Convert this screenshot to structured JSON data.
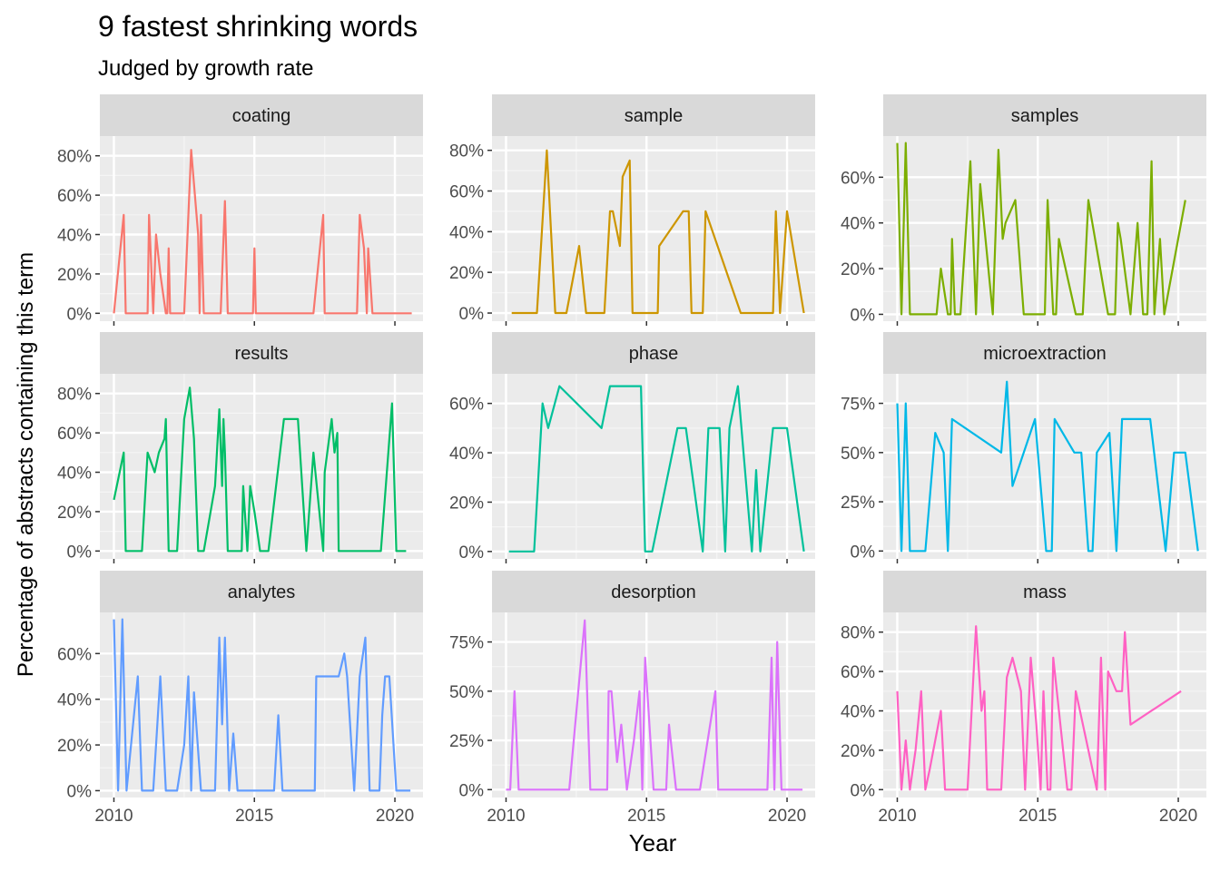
{
  "chart_data": {
    "type": "line",
    "title": "9 fastest shrinking words",
    "subtitle": "Judged by growth rate",
    "xlabel": "Year",
    "ylabel": "Percentage of abstracts containing this term",
    "xlim": [
      2009.5,
      2021.0
    ],
    "x_ticks": [
      2010,
      2015,
      2020
    ],
    "grid": true,
    "legend": "none",
    "panels": [
      {
        "name": "coating",
        "color": "#F8766D",
        "ylim": [
          -0.04,
          0.9
        ],
        "y_ticks": [
          0,
          0.2,
          0.4,
          0.6,
          0.8
        ],
        "y_tick_labels": [
          "0%",
          "20%",
          "40%",
          "60%",
          "80%"
        ],
        "x": [
          2010.0,
          2010.35,
          2010.42,
          2011.2,
          2011.25,
          2011.4,
          2011.5,
          2011.65,
          2011.85,
          2011.9,
          2011.95,
          2012.0,
          2012.5,
          2012.75,
          2013.0,
          2013.05,
          2013.1,
          2013.2,
          2013.8,
          2013.95,
          2014.05,
          2014.95,
          2015.0,
          2015.05,
          2017.1,
          2017.45,
          2017.5,
          2018.65,
          2018.75,
          2018.9,
          2019.0,
          2019.05,
          2019.2,
          2019.3,
          2020.6
        ],
        "y": [
          0,
          0.5,
          0,
          0,
          0.5,
          0,
          0.4,
          0.2,
          0,
          0,
          0.33,
          0,
          0,
          0.83,
          0.4,
          0,
          0.5,
          0,
          0,
          0.57,
          0,
          0,
          0.33,
          0,
          0,
          0.5,
          0,
          0,
          0.5,
          0.33,
          0,
          0.33,
          0,
          0,
          0
        ]
      },
      {
        "name": "sample",
        "color": "#CD9600",
        "ylim": [
          -0.04,
          0.87
        ],
        "y_ticks": [
          0,
          0.2,
          0.4,
          0.6,
          0.8
        ],
        "y_tick_labels": [
          "0%",
          "20%",
          "40%",
          "60%",
          "80%"
        ],
        "x": [
          2010.2,
          2011.1,
          2011.45,
          2011.75,
          2012.15,
          2012.6,
          2012.85,
          2013.5,
          2013.7,
          2013.8,
          2014.05,
          2014.15,
          2014.4,
          2014.5,
          2015.4,
          2015.45,
          2016.3,
          2016.5,
          2016.6,
          2017.0,
          2017.1,
          2018.35,
          2019.5,
          2019.6,
          2019.75,
          2020.0,
          2020.6
        ],
        "y": [
          0,
          0,
          0.8,
          0,
          0,
          0.33,
          0,
          0,
          0.5,
          0.5,
          0.33,
          0.67,
          0.75,
          0,
          0,
          0.33,
          0.5,
          0.5,
          0,
          0,
          0.5,
          0,
          0,
          0.5,
          0,
          0.5,
          0
        ]
      },
      {
        "name": "samples",
        "color": "#7CAE00",
        "ylim": [
          -0.03,
          0.78
        ],
        "y_ticks": [
          0,
          0.2,
          0.4,
          0.6
        ],
        "y_tick_labels": [
          "0%",
          "20%",
          "40%",
          "60%"
        ],
        "x": [
          2010.0,
          2010.15,
          2010.3,
          2010.45,
          2011.4,
          2011.55,
          2011.8,
          2011.9,
          2011.95,
          2012.05,
          2012.25,
          2012.6,
          2012.8,
          2012.95,
          2013.4,
          2013.6,
          2013.75,
          2013.85,
          2014.2,
          2014.5,
          2014.6,
          2015.25,
          2015.35,
          2015.55,
          2015.65,
          2015.75,
          2016.35,
          2016.6,
          2016.8,
          2017.5,
          2017.75,
          2017.85,
          2017.95,
          2018.3,
          2018.55,
          2018.75,
          2018.9,
          2019.05,
          2019.15,
          2019.35,
          2019.5,
          2020.25
        ],
        "y": [
          0.75,
          0,
          0.75,
          0,
          0,
          0.2,
          0,
          0,
          0.33,
          0,
          0,
          0.67,
          0,
          0.57,
          0,
          0.72,
          0.33,
          0.4,
          0.5,
          0,
          0,
          0,
          0.5,
          0,
          0,
          0.33,
          0,
          0,
          0.5,
          0,
          0,
          0.4,
          0.33,
          0,
          0.4,
          0,
          0,
          0.67,
          0,
          0.33,
          0,
          0.5
        ]
      },
      {
        "name": "results",
        "color": "#00BE67",
        "ylim": [
          -0.04,
          0.9
        ],
        "y_ticks": [
          0,
          0.2,
          0.4,
          0.6,
          0.8
        ],
        "y_tick_labels": [
          "0%",
          "20%",
          "40%",
          "60%",
          "80%"
        ],
        "x": [
          2010.0,
          2010.35,
          2010.42,
          2011.0,
          2011.2,
          2011.45,
          2011.6,
          2011.8,
          2011.85,
          2011.95,
          2012.0,
          2012.25,
          2012.5,
          2012.7,
          2012.85,
          2013.0,
          2013.2,
          2013.6,
          2013.75,
          2013.85,
          2013.9,
          2013.95,
          2014.05,
          2014.55,
          2014.6,
          2014.75,
          2014.85,
          2015.0,
          2015.2,
          2015.5,
          2016.05,
          2016.1,
          2016.55,
          2016.85,
          2017.1,
          2017.45,
          2017.5,
          2017.75,
          2017.85,
          2017.95,
          2018.0,
          2019.5,
          2019.9,
          2020.05,
          2020.4
        ],
        "y": [
          0.26,
          0.5,
          0,
          0,
          0.5,
          0.4,
          0.5,
          0.57,
          0.67,
          0,
          0,
          0,
          0.67,
          0.83,
          0.57,
          0,
          0,
          0.33,
          0.72,
          0.33,
          0.67,
          0.5,
          0,
          0,
          0.33,
          0,
          0.33,
          0.2,
          0,
          0,
          0.67,
          0.67,
          0.67,
          0,
          0.5,
          0,
          0.4,
          0.67,
          0.5,
          0.6,
          0,
          0,
          0.75,
          0,
          0
        ]
      },
      {
        "name": "phase",
        "color": "#00C19A",
        "ylim": [
          -0.03,
          0.72
        ],
        "y_ticks": [
          0,
          0.2,
          0.4,
          0.6
        ],
        "y_tick_labels": [
          "0%",
          "20%",
          "40%",
          "60%"
        ],
        "x": [
          2010.1,
          2011.0,
          2011.3,
          2011.5,
          2011.9,
          2013.4,
          2013.7,
          2014.5,
          2014.8,
          2014.95,
          2015.2,
          2016.1,
          2016.4,
          2017.0,
          2017.2,
          2017.6,
          2017.8,
          2017.95,
          2018.25,
          2018.75,
          2018.9,
          2019.05,
          2019.5,
          2020.0,
          2020.6
        ],
        "y": [
          0,
          0,
          0.6,
          0.5,
          0.67,
          0.5,
          0.67,
          0.67,
          0.67,
          0,
          0,
          0.5,
          0.5,
          0,
          0.5,
          0.5,
          0,
          0.5,
          0.67,
          0,
          0.33,
          0,
          0.5,
          0.5,
          0
        ]
      },
      {
        "name": "microextraction",
        "color": "#00B8E7",
        "ylim": [
          -0.04,
          0.9
        ],
        "y_ticks": [
          0,
          0.25,
          0.5,
          0.75
        ],
        "y_tick_labels": [
          "0%",
          "25%",
          "50%",
          "75%"
        ],
        "x": [
          2010.0,
          2010.15,
          2010.3,
          2010.45,
          2011.0,
          2011.35,
          2011.65,
          2011.8,
          2011.95,
          2013.7,
          2013.9,
          2014.1,
          2014.9,
          2015.3,
          2015.5,
          2015.6,
          2016.3,
          2016.55,
          2016.8,
          2016.95,
          2017.1,
          2017.55,
          2017.8,
          2018.0,
          2018.7,
          2019.0,
          2019.55,
          2019.85,
          2020.25,
          2020.7
        ],
        "y": [
          0.75,
          0,
          0.75,
          0,
          0,
          0.6,
          0.5,
          0,
          0.67,
          0.5,
          0.86,
          0.33,
          0.67,
          0,
          0,
          0.67,
          0.5,
          0.5,
          0,
          0,
          0.5,
          0.6,
          0,
          0.67,
          0.67,
          0.67,
          0,
          0.5,
          0.5,
          0
        ]
      },
      {
        "name": "analytes",
        "color": "#619CFF",
        "ylim": [
          -0.03,
          0.78
        ],
        "y_ticks": [
          0,
          0.2,
          0.4,
          0.6
        ],
        "y_tick_labels": [
          "0%",
          "20%",
          "40%",
          "60%"
        ],
        "x": [
          2010.0,
          2010.15,
          2010.3,
          2010.45,
          2010.85,
          2011.0,
          2011.4,
          2011.65,
          2011.85,
          2012.25,
          2012.5,
          2012.65,
          2012.75,
          2012.85,
          2013.1,
          2013.6,
          2013.75,
          2013.85,
          2013.95,
          2014.1,
          2014.25,
          2014.4,
          2014.55,
          2015.7,
          2015.85,
          2016.0,
          2017.15,
          2017.2,
          2018.0,
          2018.2,
          2018.3,
          2018.55,
          2018.75,
          2018.95,
          2019.1,
          2019.45,
          2019.55,
          2019.65,
          2019.8,
          2020.05,
          2020.55
        ],
        "y": [
          0.75,
          0,
          0.75,
          0,
          0.5,
          0,
          0,
          0.5,
          0,
          0,
          0.2,
          0.5,
          0,
          0.43,
          0,
          0,
          0.67,
          0.29,
          0.67,
          0,
          0.25,
          0,
          0,
          0,
          0.33,
          0,
          0,
          0.5,
          0.5,
          0.6,
          0.5,
          0,
          0.5,
          0.67,
          0,
          0,
          0.33,
          0.5,
          0.5,
          0,
          0
        ]
      },
      {
        "name": "desorption",
        "color": "#DB72FB",
        "ylim": [
          -0.04,
          0.9
        ],
        "y_ticks": [
          0,
          0.25,
          0.5,
          0.75
        ],
        "y_tick_labels": [
          "0%",
          "25%",
          "50%",
          "75%"
        ],
        "x": [
          2010.0,
          2010.15,
          2010.3,
          2010.45,
          2012.25,
          2012.8,
          2013.0,
          2013.6,
          2013.65,
          2013.75,
          2013.95,
          2014.1,
          2014.3,
          2014.55,
          2014.75,
          2014.85,
          2014.95,
          2015.25,
          2015.7,
          2015.8,
          2016.05,
          2016.9,
          2017.45,
          2017.55,
          2019.3,
          2019.45,
          2019.55,
          2019.65,
          2019.8,
          2020.55
        ],
        "y": [
          0,
          0,
          0.5,
          0,
          0,
          0.86,
          0,
          0,
          0.5,
          0.5,
          0.14,
          0.33,
          0,
          0.25,
          0.5,
          0,
          0.67,
          0,
          0,
          0.33,
          0,
          0,
          0.5,
          0,
          0,
          0.67,
          0,
          0.75,
          0,
          0
        ]
      },
      {
        "name": "mass",
        "color": "#FF61C3",
        "ylim": [
          -0.04,
          0.9
        ],
        "y_ticks": [
          0,
          0.2,
          0.4,
          0.6,
          0.8
        ],
        "y_tick_labels": [
          "0%",
          "20%",
          "40%",
          "60%",
          "80%"
        ],
        "x": [
          2010.0,
          2010.15,
          2010.3,
          2010.45,
          2010.65,
          2010.85,
          2011.0,
          2011.15,
          2011.55,
          2011.7,
          2012.5,
          2012.8,
          2013.0,
          2013.1,
          2013.2,
          2013.7,
          2013.9,
          2014.1,
          2014.4,
          2014.55,
          2014.75,
          2014.95,
          2015.1,
          2015.2,
          2015.35,
          2015.45,
          2015.55,
          2016.05,
          2016.2,
          2016.35,
          2017.1,
          2017.25,
          2017.4,
          2017.5,
          2017.8,
          2018.0,
          2018.1,
          2018.3,
          2020.1
        ],
        "y": [
          0.5,
          0,
          0.25,
          0,
          0.2,
          0.5,
          0,
          0.1,
          0.4,
          0,
          0,
          0.83,
          0.4,
          0.5,
          0,
          0,
          0.57,
          0.67,
          0.5,
          0,
          0.67,
          0.33,
          0,
          0.5,
          0,
          0,
          0.67,
          0,
          0,
          0.5,
          0,
          0.67,
          0,
          0.6,
          0.5,
          0.5,
          0.8,
          0.33,
          0.5
        ]
      }
    ]
  }
}
